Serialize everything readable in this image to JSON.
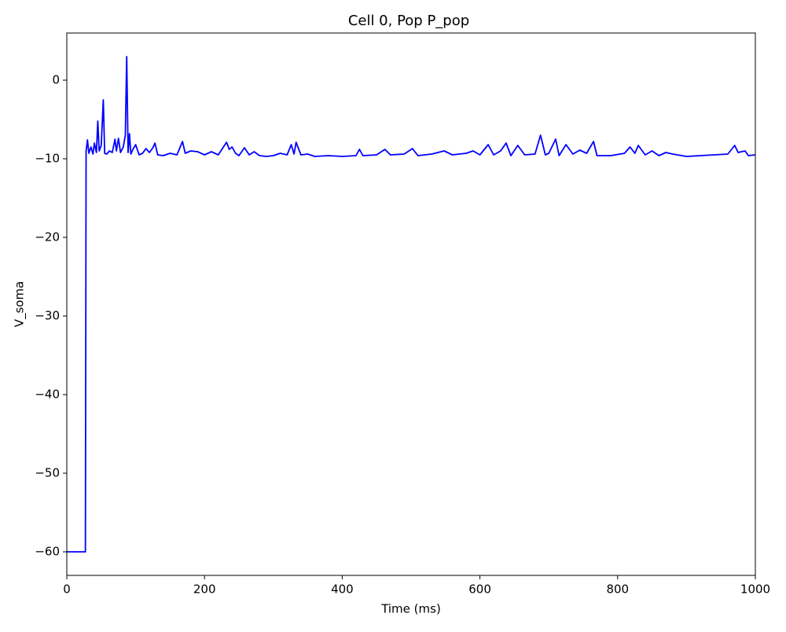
{
  "chart_data": {
    "type": "line",
    "title": "Cell 0, Pop P_pop",
    "x_label": "Time (ms)",
    "y_label": "V_soma",
    "x": [
      0,
      27,
      28,
      30,
      32,
      35,
      38,
      40,
      43,
      45,
      47,
      50,
      53,
      55,
      58,
      62,
      66,
      70,
      72,
      75,
      78,
      82,
      85,
      87,
      89,
      91,
      93,
      96,
      100,
      105,
      110,
      115,
      120,
      125,
      128,
      132,
      140,
      150,
      160,
      168,
      172,
      180,
      190,
      200,
      210,
      220,
      232,
      236,
      240,
      245,
      250,
      258,
      265,
      272,
      280,
      290,
      300,
      310,
      320,
      326,
      330,
      333,
      340,
      350,
      360,
      380,
      400,
      420,
      425,
      430,
      450,
      462,
      470,
      490,
      502,
      510,
      530,
      548,
      560,
      580,
      590,
      600,
      612,
      620,
      630,
      638,
      645,
      655,
      665,
      680,
      688,
      695,
      700,
      710,
      715,
      725,
      735,
      745,
      755,
      765,
      770,
      790,
      810,
      818,
      825,
      830,
      840,
      850,
      860,
      870,
      880,
      900,
      920,
      940,
      960,
      970,
      975,
      985,
      990,
      1000
    ],
    "series": [
      {
        "name": "V_soma",
        "color": "#0000ff",
        "values": [
          -60,
          -60,
          -9.0,
          -7.6,
          -9.3,
          -8.5,
          -9.4,
          -8.0,
          -9.2,
          -5.2,
          -9.0,
          -8.3,
          -2.5,
          -9.3,
          -9.4,
          -9.0,
          -9.2,
          -7.5,
          -9.0,
          -7.4,
          -9.2,
          -8.5,
          -7.0,
          3.0,
          -9.2,
          -6.8,
          -9.4,
          -8.8,
          -8.2,
          -9.5,
          -9.3,
          -8.7,
          -9.2,
          -8.6,
          -8.0,
          -9.5,
          -9.6,
          -9.3,
          -9.5,
          -7.8,
          -9.3,
          -9.0,
          -9.1,
          -9.5,
          -9.1,
          -9.5,
          -7.9,
          -8.8,
          -8.5,
          -9.3,
          -9.6,
          -8.6,
          -9.5,
          -9.1,
          -9.6,
          -9.7,
          -9.6,
          -9.3,
          -9.5,
          -8.2,
          -9.4,
          -7.9,
          -9.5,
          -9.4,
          -9.7,
          -9.6,
          -9.7,
          -9.6,
          -8.8,
          -9.6,
          -9.5,
          -8.8,
          -9.5,
          -9.4,
          -8.7,
          -9.6,
          -9.4,
          -9.0,
          -9.5,
          -9.3,
          -9.0,
          -9.5,
          -8.2,
          -9.5,
          -9.0,
          -8.0,
          -9.6,
          -8.3,
          -9.5,
          -9.4,
          -7.0,
          -9.5,
          -9.3,
          -7.5,
          -9.6,
          -8.2,
          -9.4,
          -8.9,
          -9.3,
          -7.8,
          -9.6,
          -9.6,
          -9.3,
          -8.5,
          -9.3,
          -8.3,
          -9.5,
          -9.0,
          -9.6,
          -9.2,
          -9.4,
          -9.7,
          -9.6,
          -9.5,
          -9.4,
          -8.3,
          -9.2,
          -9.0,
          -9.6,
          -9.5
        ]
      }
    ],
    "xlim": [
      0,
      1000
    ],
    "xticks": [
      0,
      200,
      400,
      600,
      800,
      1000
    ],
    "ylim": [
      -63,
      6
    ],
    "yticks": [
      {
        "value": -60,
        "label": "−60"
      },
      {
        "value": -50,
        "label": "−50"
      },
      {
        "value": -40,
        "label": "−40"
      },
      {
        "value": -30,
        "label": "−30"
      },
      {
        "value": -20,
        "label": "−20"
      },
      {
        "value": -10,
        "label": "−10"
      },
      0
    ],
    "grid": false
  }
}
